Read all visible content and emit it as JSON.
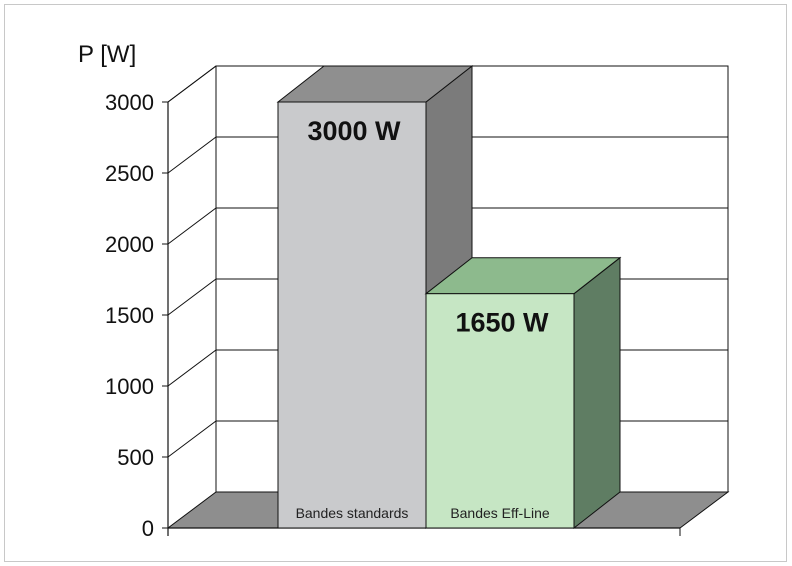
{
  "chart_data": {
    "type": "bar",
    "title": "",
    "ylabel": "P [W]",
    "xlabel": "",
    "ylim": [
      0,
      3000
    ],
    "yticks": [
      0,
      500,
      1000,
      1500,
      2000,
      2500,
      3000
    ],
    "categories": [
      "Bandes standards",
      "Bandes Eff-Line"
    ],
    "values": [
      3000,
      1650
    ],
    "data_labels": [
      "3000 W",
      "1650 W"
    ],
    "grid": true,
    "three_d": true,
    "bar_colors": [
      {
        "front": "#c9cacc",
        "top": "#8f8f8f",
        "side": "#7b7b7b"
      },
      {
        "front": "#c6e6c4",
        "top": "#8dba8d",
        "side": "#5f7d63"
      }
    ],
    "floor_color": "#8e8e8e"
  }
}
